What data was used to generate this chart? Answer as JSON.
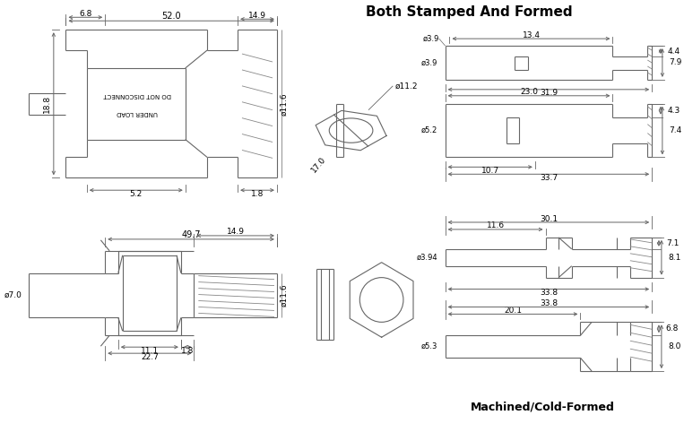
{
  "title_stamped": "Both Stamped And Formed",
  "title_machined": "Machined/Cold-Formed",
  "bg_color": "#ffffff",
  "lc": "#666666",
  "dc": "#666666",
  "tc": "#000000",
  "fig_width": 7.63,
  "fig_height": 4.92,
  "dpi": 100,
  "warn1": "DO NOT DISCONNECT",
  "warn2": "UNDER LOAD"
}
